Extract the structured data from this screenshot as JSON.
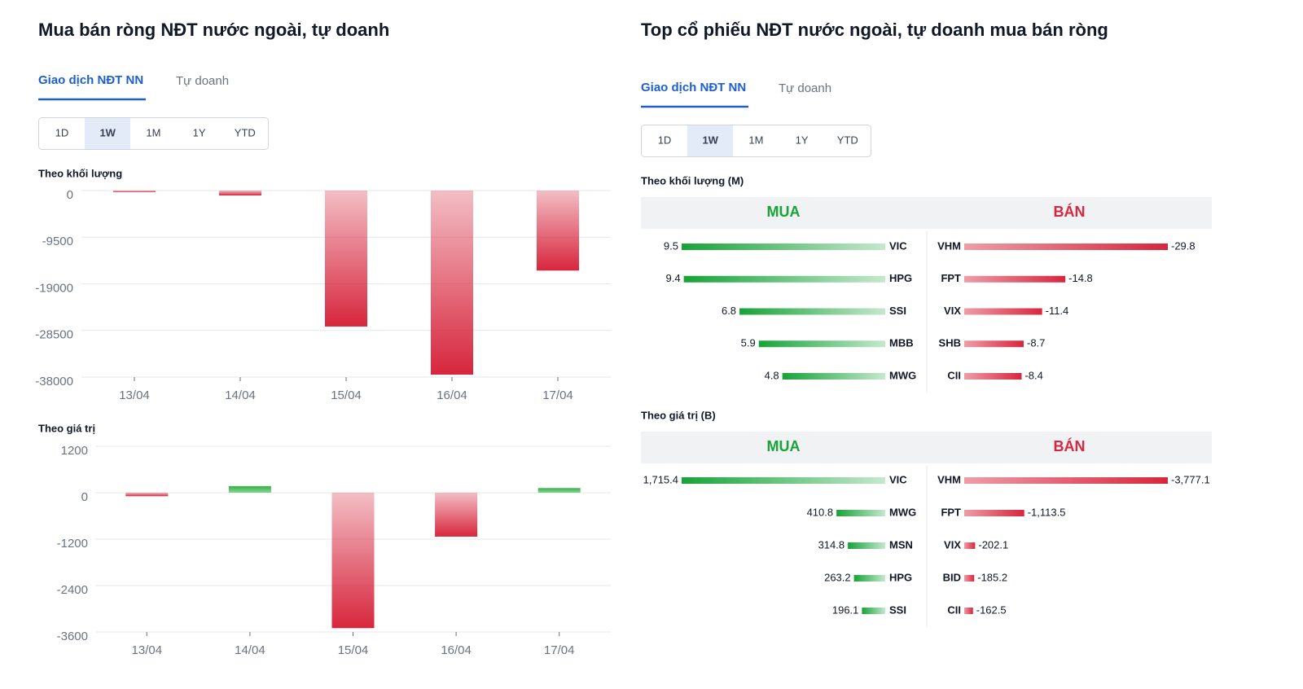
{
  "left": {
    "title": "Mua bán ròng NĐT nước ngoài, tự doanh",
    "tabs": [
      "Giao dịch NĐT NN",
      "Tự doanh"
    ],
    "periods": [
      "1D",
      "1W",
      "1M",
      "1Y",
      "YTD"
    ]
  },
  "right": {
    "title": "Top cổ phiếu NĐT nước ngoài, tự doanh mua bán ròng",
    "tabs": [
      "Giao dịch NĐT NN",
      "Tự doanh"
    ],
    "periods": [
      "1D",
      "1W",
      "1M",
      "1Y",
      "YTD"
    ]
  },
  "chart_data": [
    {
      "type": "bar",
      "title": "Theo khối lượng",
      "categories": [
        "13/04",
        "14/04",
        "15/04",
        "16/04",
        "17/04"
      ],
      "values": [
        -300,
        -1000,
        -27700,
        -37500,
        -16300
      ],
      "ylim": [
        -38000,
        0
      ],
      "yticks": [
        0,
        -9500,
        -19000,
        -28500,
        -38000
      ],
      "grid": true,
      "positive_color": "#2fb344",
      "negative_color": "#d7263d"
    },
    {
      "type": "bar",
      "title": "Theo giá trị",
      "categories": [
        "13/04",
        "14/04",
        "15/04",
        "16/04",
        "17/04"
      ],
      "values": [
        -90,
        170,
        -3500,
        -1135,
        120
      ],
      "ylim": [
        -3600,
        1200
      ],
      "yticks": [
        1200,
        0,
        -1200,
        -2400,
        -3600
      ],
      "grid": true,
      "positive_color": "#2fb344",
      "negative_color": "#d7263d"
    },
    {
      "type": "diverging_list",
      "title": "Theo khối lượng (M)",
      "series": [
        {
          "name": "MUA",
          "color": "#17a338",
          "categories": [
            "VIC",
            "HPG",
            "SSI",
            "MBB",
            "MWG"
          ],
          "values": [
            9.5,
            9.4,
            6.8,
            5.9,
            4.8
          ]
        },
        {
          "name": "BÁN",
          "color": "#d7263d",
          "categories": [
            "VHM",
            "FPT",
            "VIX",
            "SHB",
            "CII"
          ],
          "values": [
            -29.8,
            -14.8,
            -11.4,
            -8.7,
            -8.4
          ]
        }
      ]
    },
    {
      "type": "diverging_list",
      "title": "Theo giá trị (B)",
      "series": [
        {
          "name": "MUA",
          "color": "#17a338",
          "categories": [
            "VIC",
            "MWG",
            "MSN",
            "HPG",
            "SSI"
          ],
          "values": [
            1715.4,
            410.8,
            314.8,
            263.2,
            196.1
          ],
          "value_labels": [
            "1,715.4",
            "410.8",
            "314.8",
            "263.2",
            "196.1"
          ]
        },
        {
          "name": "BÁN",
          "color": "#d7263d",
          "categories": [
            "VHM",
            "FPT",
            "VIX",
            "BID",
            "CII"
          ],
          "values": [
            -3777.1,
            -1113.5,
            -202.1,
            -185.2,
            -162.5
          ],
          "value_labels": [
            "-3,777.1",
            "-1,113.5",
            "-202.1",
            "-185.2",
            "-162.5"
          ]
        }
      ]
    }
  ]
}
